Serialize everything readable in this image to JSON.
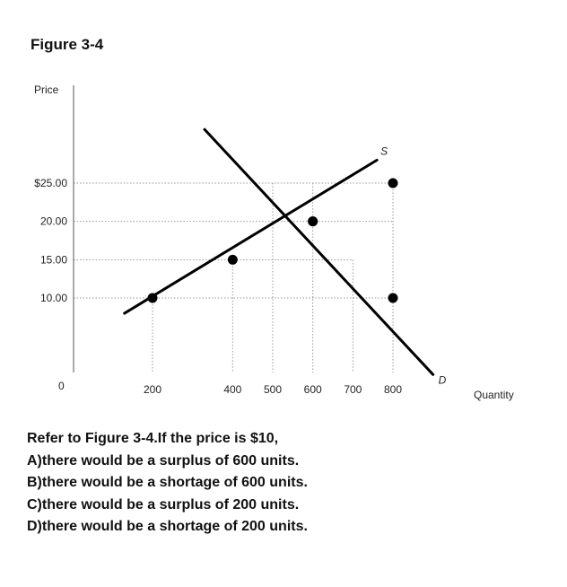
{
  "figure_title": "Figure 3-4",
  "chart_data": {
    "type": "line",
    "xlabel": "Quantity",
    "ylabel": "Price",
    "origin_label": "0",
    "x_ticks": [
      {
        "value": 200,
        "label": "200"
      },
      {
        "value": 400,
        "label": "400"
      },
      {
        "value": 500,
        "label": "500"
      },
      {
        "value": 600,
        "label": "600"
      },
      {
        "value": 700,
        "label": "700"
      },
      {
        "value": 800,
        "label": "800"
      }
    ],
    "y_ticks": [
      {
        "value": 10,
        "label": "10.00"
      },
      {
        "value": 15,
        "label": "15.00"
      },
      {
        "value": 20,
        "label": "20.00"
      },
      {
        "value": 25,
        "label": "$25.00"
      }
    ],
    "xlim": [
      0,
      1000
    ],
    "ylim": [
      0,
      35
    ],
    "grid": "dotted guide lines at labeled ticks",
    "series": [
      {
        "name": "S",
        "line": [
          [
            130,
            8
          ],
          [
            760,
            28
          ]
        ],
        "points": [
          [
            200,
            10
          ],
          [
            400,
            15
          ],
          [
            600,
            20
          ],
          [
            800,
            25
          ]
        ]
      },
      {
        "name": "D",
        "line": [
          [
            330,
            32
          ],
          [
            900,
            0
          ]
        ],
        "points": [
          [
            600,
            20
          ],
          [
            800,
            10
          ]
        ]
      }
    ],
    "colors": {
      "line": "#000000",
      "guide": "#9a9a9a"
    }
  },
  "question": {
    "stem": "Refer to Figure 3-4.If the price is $10,",
    "options": [
      "A)there would be a surplus of 600 units.",
      "B)there would be a shortage of 600 units.",
      "C)there would be a surplus of 200 units.",
      "D)there would be a shortage of 200 units."
    ]
  }
}
